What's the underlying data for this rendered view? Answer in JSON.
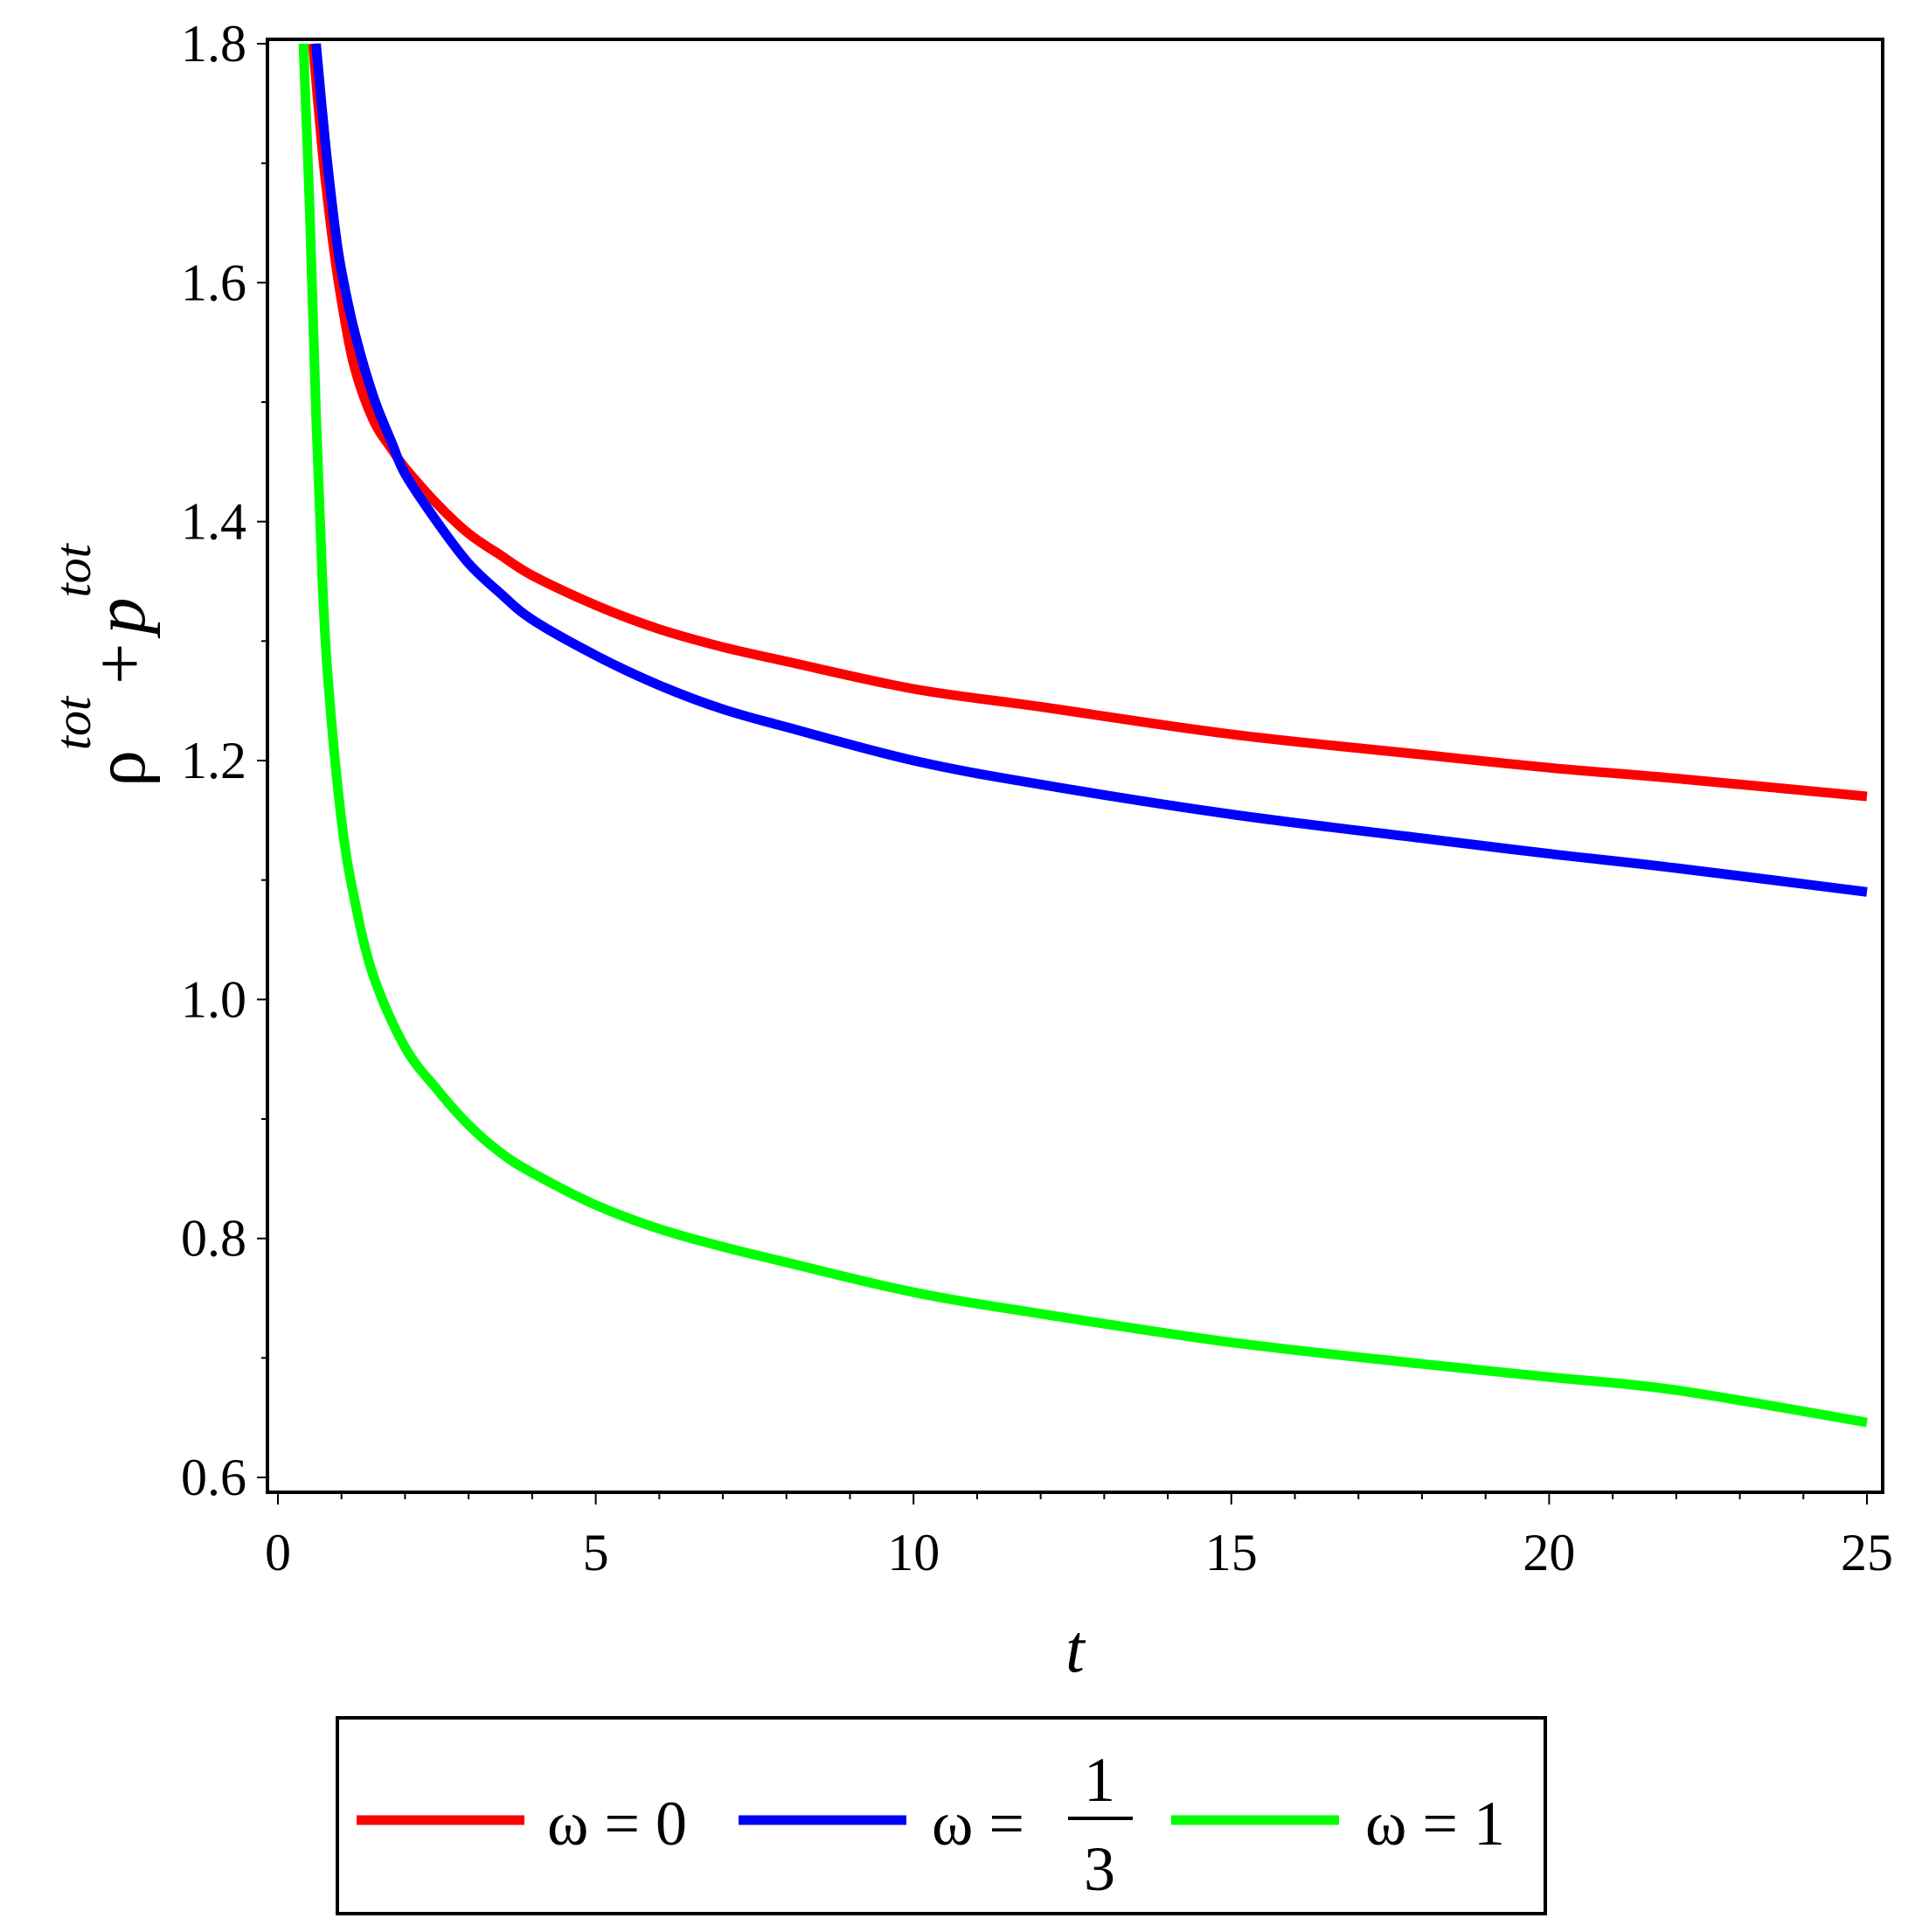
{
  "chart_data": {
    "type": "line",
    "xlabel": "t",
    "ylabel": {
      "base1": "ρ",
      "sup1": "tot",
      "plus": "+",
      "base2": "p",
      "sup2": "tot"
    },
    "xlim": [
      0,
      25
    ],
    "ylim": [
      0.6,
      1.8
    ],
    "x_ticks": [
      0,
      5,
      10,
      15,
      20,
      25
    ],
    "x_tick_labels": [
      "0",
      "5",
      "10",
      "15",
      "20",
      "25"
    ],
    "y_ticks": [
      0.6,
      0.8,
      1.0,
      1.2,
      1.4,
      1.6,
      1.8
    ],
    "y_tick_labels": [
      "0.6",
      "0.8",
      "1.0",
      "1.2",
      "1.4",
      "1.6",
      "1.8"
    ],
    "grid": false,
    "legend_position": "bottom",
    "series": [
      {
        "legend": {
          "omega": "ω",
          "eq": "=",
          "value": "0"
        },
        "color": "#ff0000",
        "x": [
          0.55,
          0.7,
          0.85,
          1.0,
          1.2,
          1.5,
          1.8,
          2.0,
          2.5,
          3.0,
          3.5,
          4.0,
          5.0,
          6.0,
          7.0,
          8.0,
          10.0,
          12.0,
          15.0,
          18.0,
          20.0,
          22.0,
          25.0
        ],
        "y": [
          1.8,
          1.71,
          1.64,
          1.585,
          1.53,
          1.485,
          1.46,
          1.445,
          1.415,
          1.39,
          1.372,
          1.355,
          1.33,
          1.31,
          1.295,
          1.283,
          1.26,
          1.245,
          1.222,
          1.205,
          1.194,
          1.185,
          1.17
        ]
      },
      {
        "legend": {
          "omega": "ω",
          "eq": "=",
          "num": "1",
          "den": "3"
        },
        "color": "#0000ff",
        "x": [
          0.6,
          0.75,
          0.9,
          1.0,
          1.2,
          1.5,
          1.8,
          2.0,
          2.5,
          3.0,
          3.5,
          4.0,
          5.0,
          6.0,
          7.0,
          8.0,
          10.0,
          12.0,
          15.0,
          18.0,
          20.0,
          22.0,
          25.0
        ],
        "y": [
          1.8,
          1.715,
          1.645,
          1.61,
          1.56,
          1.505,
          1.465,
          1.44,
          1.4,
          1.365,
          1.34,
          1.318,
          1.288,
          1.263,
          1.243,
          1.228,
          1.2,
          1.18,
          1.155,
          1.135,
          1.122,
          1.11,
          1.09
        ]
      },
      {
        "legend": {
          "omega": "ω",
          "eq": "=",
          "value": "1"
        },
        "color": "#00ff00",
        "x": [
          0.4,
          0.5,
          0.6,
          0.7,
          0.8,
          1.0,
          1.2,
          1.5,
          2.0,
          2.5,
          3.0,
          3.5,
          4.0,
          5.0,
          6.0,
          7.0,
          8.0,
          10.0,
          12.0,
          15.0,
          18.0,
          20.0,
          22.0,
          25.0
        ],
        "y": [
          1.8,
          1.66,
          1.49,
          1.35,
          1.26,
          1.15,
          1.085,
          1.02,
          0.96,
          0.925,
          0.895,
          0.872,
          0.855,
          0.828,
          0.808,
          0.793,
          0.78,
          0.755,
          0.737,
          0.713,
          0.695,
          0.684,
          0.673,
          0.646
        ]
      }
    ]
  }
}
